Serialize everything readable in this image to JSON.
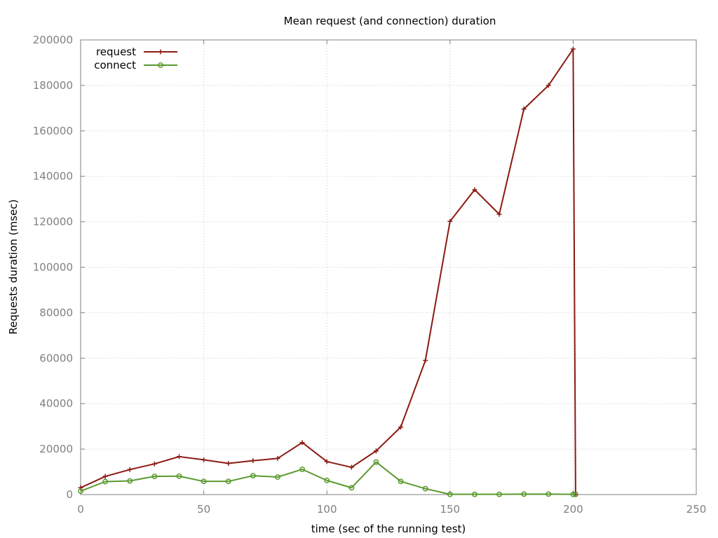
{
  "chart_data": {
    "type": "line",
    "title": "Mean request (and connection) duration",
    "xlabel": "time (sec of the running test)",
    "ylabel": "Requests duration (msec)",
    "xlim": [
      0,
      250
    ],
    "ylim": [
      0,
      200000
    ],
    "xticks": [
      0,
      50,
      100,
      150,
      200,
      250
    ],
    "yticks": [
      0,
      20000,
      40000,
      60000,
      80000,
      100000,
      120000,
      140000,
      160000,
      180000,
      200000
    ],
    "grid": true,
    "legend_position": "top-left",
    "series": [
      {
        "name": "request",
        "color": "#8b1a12",
        "marker": "plus",
        "x": [
          0,
          10,
          20,
          30,
          40,
          50,
          60,
          70,
          80,
          90,
          100,
          110,
          120,
          130,
          140,
          150,
          160,
          170,
          180,
          190,
          200,
          201
        ],
        "y": [
          3000,
          8000,
          11000,
          13500,
          16700,
          15300,
          13700,
          14900,
          15900,
          22900,
          14500,
          12000,
          19200,
          29700,
          59000,
          120200,
          134100,
          123300,
          169600,
          180000,
          196000,
          0
        ]
      },
      {
        "name": "connect",
        "color": "#5a9a2e",
        "marker": "circle",
        "x": [
          0,
          10,
          20,
          30,
          40,
          50,
          60,
          70,
          80,
          90,
          100,
          110,
          120,
          130,
          140,
          150,
          160,
          170,
          180,
          190,
          200,
          201
        ],
        "y": [
          1500,
          5700,
          6000,
          8000,
          8100,
          5800,
          5800,
          8300,
          7700,
          11100,
          6200,
          3000,
          14300,
          5800,
          2600,
          100,
          100,
          100,
          200,
          200,
          100,
          100
        ]
      }
    ]
  }
}
